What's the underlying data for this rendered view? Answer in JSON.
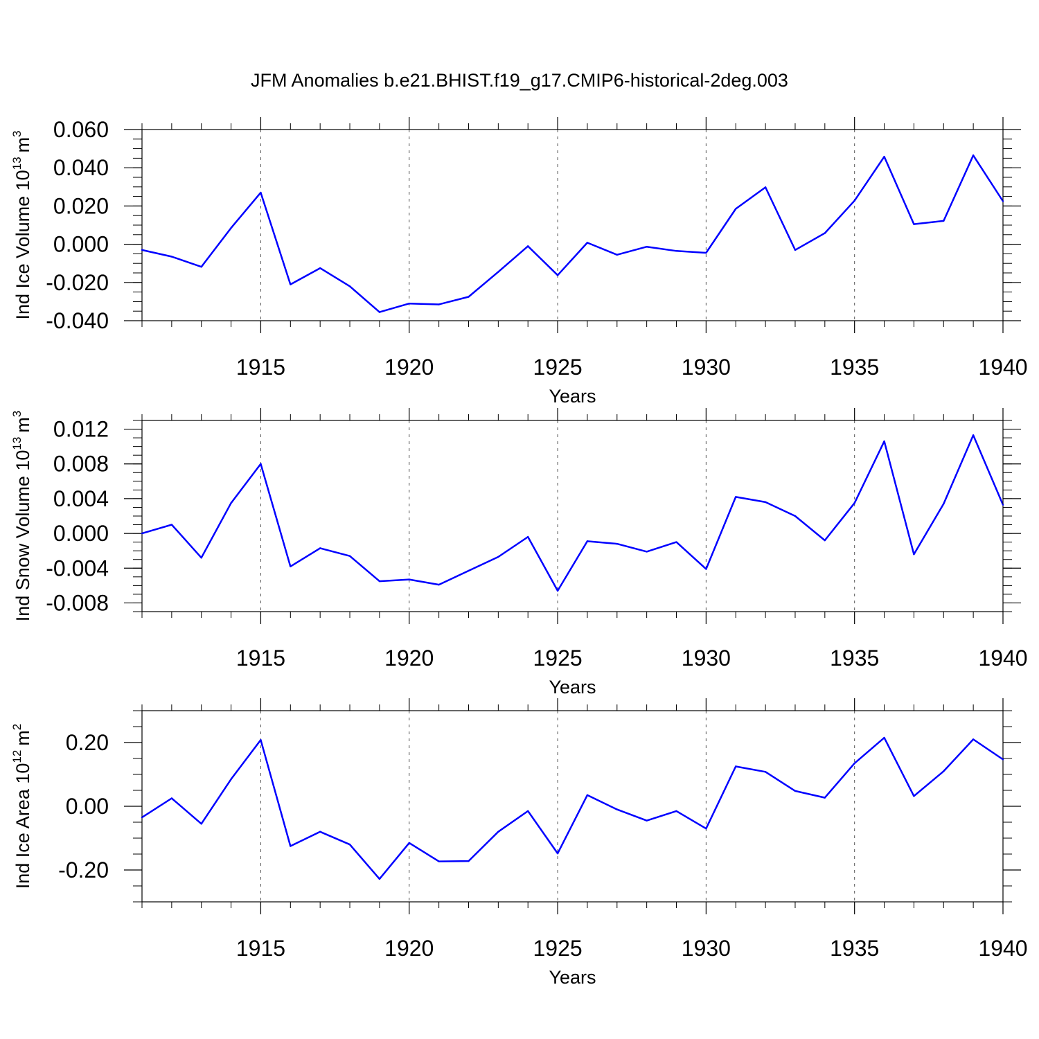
{
  "figure": {
    "title": "JFM Anomalies b.e21.BHIST.f19_g17.CMIP6-historical-2deg.003"
  },
  "chart_data": [
    {
      "type": "line",
      "title": "",
      "xlabel": "Years",
      "ylabel": "Ind Ice Volume 10",
      "ylabel_exp": "13",
      "ylabel_unit": "m",
      "ylabel_unit_exp": "3",
      "xlim": [
        1911,
        1940
      ],
      "ylim": [
        -0.04,
        0.06
      ],
      "x_ticks": [
        1915,
        1920,
        1925,
        1930,
        1935,
        1940
      ],
      "x_tick_labels": [
        "1915",
        "1920",
        "1925",
        "1930",
        "1935",
        "1940"
      ],
      "y_ticks": [
        -0.04,
        -0.02,
        0.0,
        0.02,
        0.04,
        0.06
      ],
      "y_tick_labels": [
        "-0.040",
        "-0.020",
        "0.000",
        "0.020",
        "0.040",
        "0.060"
      ],
      "y_minor_step": 0.005,
      "grid": "vertical dashed at major x ticks",
      "color": "#0000ff",
      "x": [
        1911,
        1912,
        1913,
        1914,
        1915,
        1916,
        1917,
        1918,
        1919,
        1920,
        1921,
        1922,
        1923,
        1924,
        1925,
        1926,
        1927,
        1928,
        1929,
        1930,
        1931,
        1932,
        1933,
        1934,
        1935,
        1936,
        1937,
        1938,
        1939,
        1940
      ],
      "values": [
        -0.003,
        -0.0065,
        -0.0118,
        0.0085,
        0.027,
        -0.021,
        -0.0125,
        -0.022,
        -0.0355,
        -0.031,
        -0.0315,
        -0.0275,
        -0.0145,
        -0.001,
        -0.0162,
        0.0008,
        -0.0055,
        -0.0013,
        -0.0035,
        -0.0045,
        0.0185,
        0.0298,
        -0.003,
        0.0058,
        0.0228,
        0.0458,
        0.0105,
        0.0122,
        0.0465,
        0.0225
      ]
    },
    {
      "type": "line",
      "title": "",
      "xlabel": "Years",
      "ylabel": "Ind Snow Volume 10",
      "ylabel_exp": "13",
      "ylabel_unit": "m",
      "ylabel_unit_exp": "3",
      "xlim": [
        1911,
        1940
      ],
      "ylim": [
        -0.009,
        0.013
      ],
      "x_ticks": [
        1915,
        1920,
        1925,
        1930,
        1935,
        1940
      ],
      "x_tick_labels": [
        "1915",
        "1920",
        "1925",
        "1930",
        "1935",
        "1940"
      ],
      "y_ticks": [
        -0.008,
        -0.004,
        0.0,
        0.004,
        0.008,
        0.012
      ],
      "y_tick_labels": [
        "-0.008",
        "-0.004",
        "0.000",
        "0.004",
        "0.008",
        "0.012"
      ],
      "y_minor_step": 0.001,
      "grid": "vertical dashed at major x ticks",
      "color": "#0000ff",
      "x": [
        1911,
        1912,
        1913,
        1914,
        1915,
        1916,
        1917,
        1918,
        1919,
        1920,
        1921,
        1922,
        1923,
        1924,
        1925,
        1926,
        1927,
        1928,
        1929,
        1930,
        1931,
        1932,
        1933,
        1934,
        1935,
        1936,
        1937,
        1938,
        1939,
        1940
      ],
      "values": [
        0.0,
        0.001,
        -0.0028,
        0.0035,
        0.008,
        -0.0038,
        -0.0017,
        -0.0026,
        -0.0055,
        -0.0053,
        -0.0059,
        -0.0043,
        -0.0027,
        -0.0004,
        -0.0066,
        -0.0009,
        -0.0012,
        -0.0021,
        -0.001,
        -0.0041,
        0.0042,
        0.0036,
        0.002,
        -0.0008,
        0.0035,
        0.0106,
        -0.0024,
        0.0034,
        0.0113,
        0.0033
      ]
    },
    {
      "type": "line",
      "title": "",
      "xlabel": "Years",
      "ylabel": "Ind Ice Area 10",
      "ylabel_exp": "12",
      "ylabel_unit": "m",
      "ylabel_unit_exp": "2",
      "xlim": [
        1911,
        1940
      ],
      "ylim": [
        -0.3,
        0.3
      ],
      "x_ticks": [
        1915,
        1920,
        1925,
        1930,
        1935,
        1940
      ],
      "x_tick_labels": [
        "1915",
        "1920",
        "1925",
        "1930",
        "1935",
        "1940"
      ],
      "y_ticks": [
        -0.2,
        0.0,
        0.2
      ],
      "y_tick_labels": [
        "-0.20",
        "0.00",
        "0.20"
      ],
      "y_minor_step": 0.05,
      "grid": "vertical dashed at major x ticks",
      "color": "#0000ff",
      "x": [
        1911,
        1912,
        1913,
        1914,
        1915,
        1916,
        1917,
        1918,
        1919,
        1920,
        1921,
        1922,
        1923,
        1924,
        1925,
        1926,
        1927,
        1928,
        1929,
        1930,
        1931,
        1932,
        1933,
        1934,
        1935,
        1936,
        1937,
        1938,
        1939,
        1940
      ],
      "values": [
        -0.035,
        0.025,
        -0.055,
        0.085,
        0.208,
        -0.125,
        -0.08,
        -0.12,
        -0.228,
        -0.115,
        -0.173,
        -0.172,
        -0.08,
        -0.015,
        -0.148,
        0.035,
        -0.01,
        -0.045,
        -0.015,
        -0.07,
        0.125,
        0.108,
        0.048,
        0.027,
        0.135,
        0.215,
        0.032,
        0.11,
        0.21,
        0.147
      ]
    }
  ]
}
